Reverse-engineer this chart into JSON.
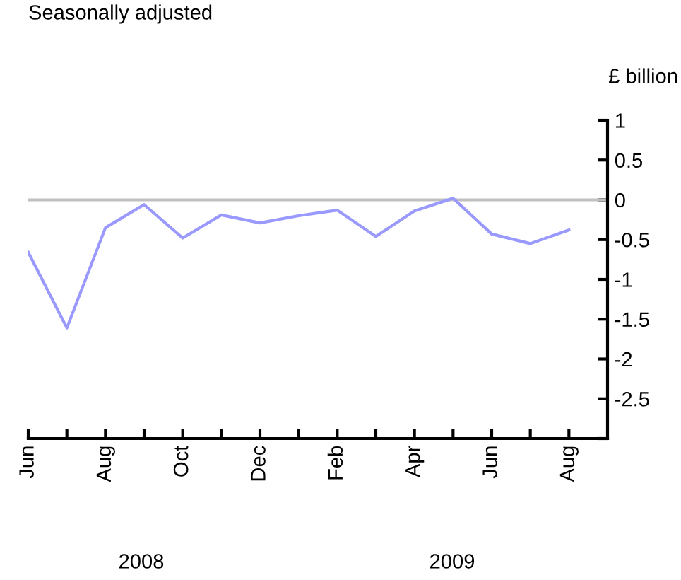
{
  "chart_data": {
    "type": "line",
    "subtitle": "Seasonally adjusted",
    "ylabel": "£ billion",
    "categories": [
      "Jun",
      null,
      "Aug",
      null,
      "Oct",
      null,
      "Dec",
      null,
      "Feb",
      null,
      "Apr",
      null,
      "Jun",
      null,
      "Aug"
    ],
    "series": [
      {
        "color": "#9999ff",
        "values": [
          -0.66,
          -1.61,
          -0.35,
          -0.06,
          -0.48,
          -0.19,
          -0.29,
          -0.2,
          -0.13,
          -0.46,
          -0.14,
          0.02,
          -0.43,
          -0.55,
          -0.38
        ]
      }
    ],
    "ref_lines": [
      {
        "axis": "y",
        "value": 0,
        "color": "#c0c0c0"
      }
    ],
    "ylim": [
      -3,
      1
    ],
    "yticks": [
      {
        "value": -3,
        "label": null
      },
      -2.5,
      -2,
      -1.5,
      -1,
      -0.5,
      0,
      0.5,
      1
    ],
    "annotations": [
      "2008",
      "2009"
    ],
    "grid": false,
    "legend": false
  }
}
